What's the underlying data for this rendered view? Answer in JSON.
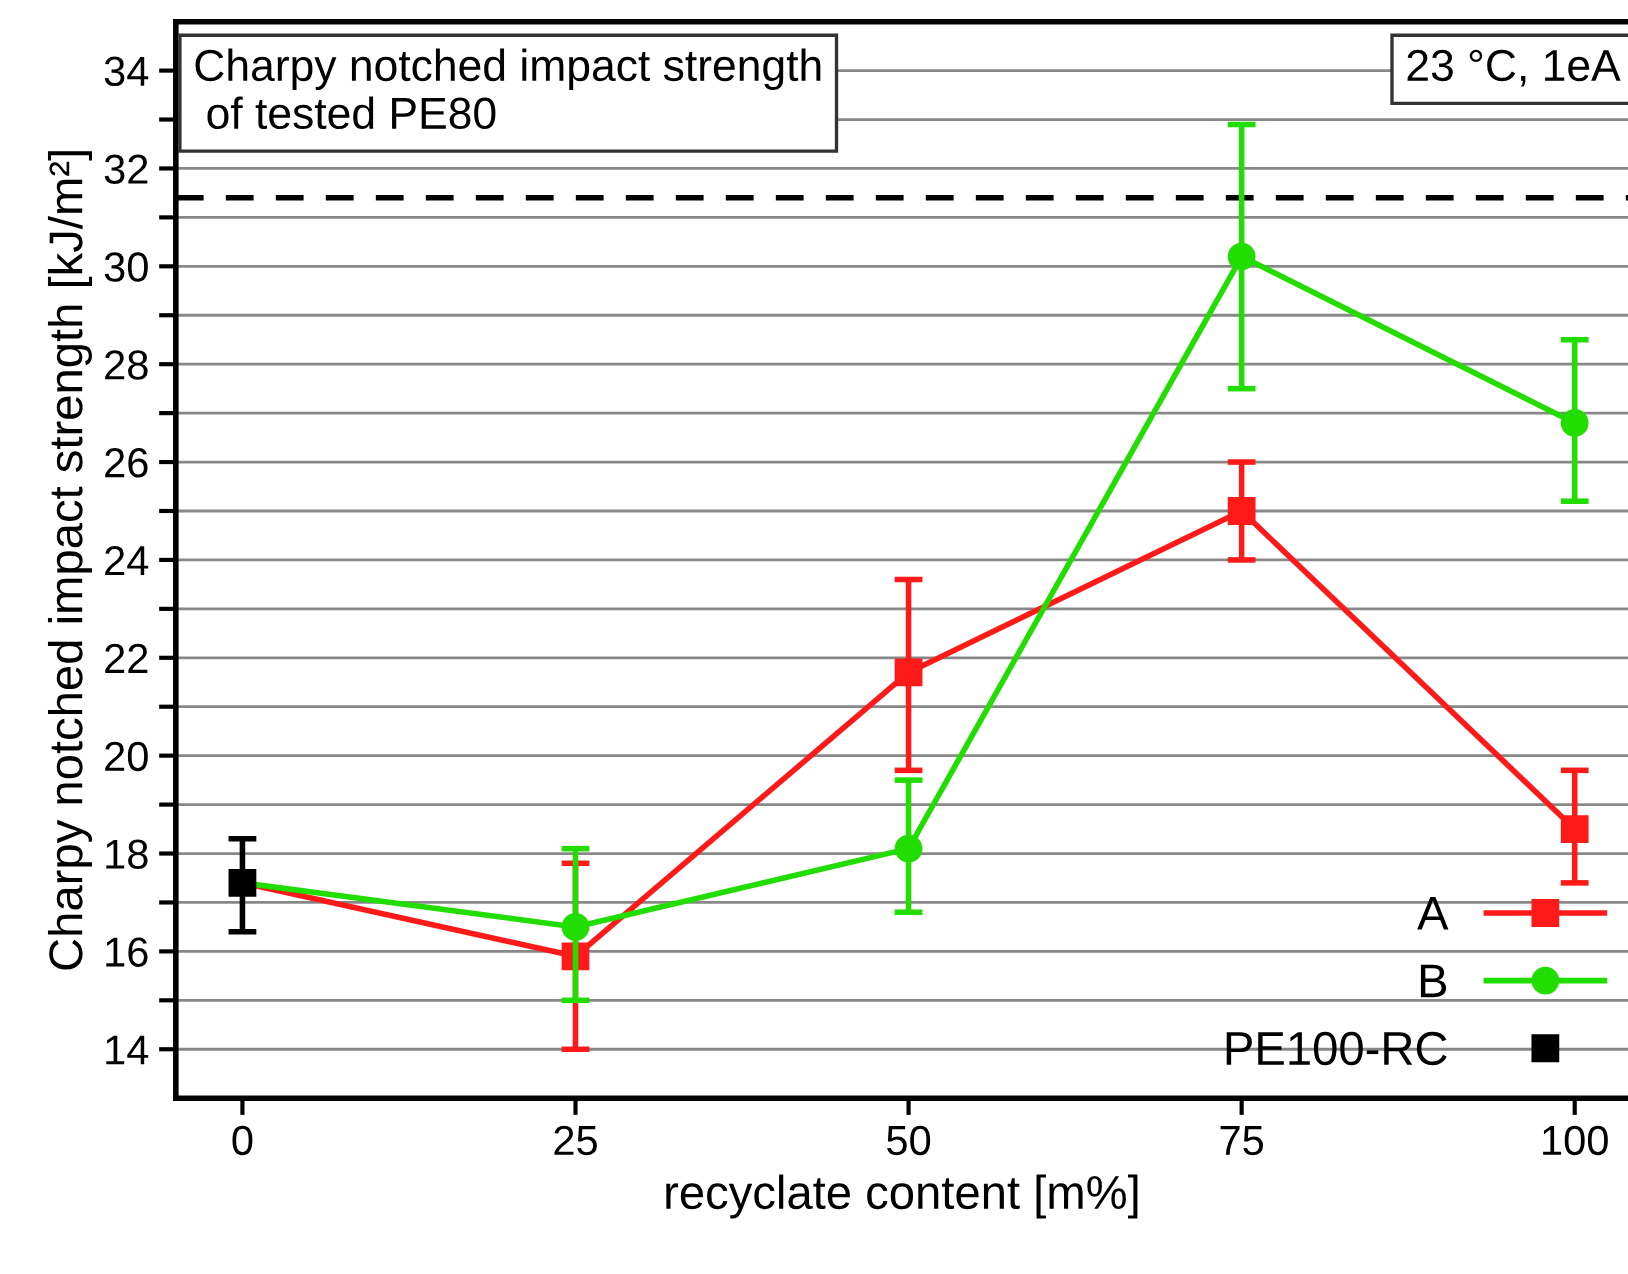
{
  "chart_data": {
    "type": "line",
    "xlabel": "recyclate content [m%]",
    "ylabel": "Charpy notched impact strength [kJ/m²]",
    "annotations": [
      "Charpy notched impact strength\n of tested PE80",
      "23 °C, 1eA"
    ],
    "x": [
      0,
      25,
      50,
      75,
      100
    ],
    "xlim": [
      -5,
      104
    ],
    "xticks": [
      0,
      25,
      50,
      75,
      100
    ],
    "ylim": [
      13,
      35
    ],
    "yticks": [
      14,
      {
        "value": 15,
        "label": null
      },
      16,
      {
        "value": 17,
        "label": null
      },
      18,
      {
        "value": 19,
        "label": null
      },
      20,
      {
        "value": 21,
        "label": null
      },
      22,
      {
        "value": 23,
        "label": null
      },
      24,
      {
        "value": 25,
        "label": null
      },
      26,
      {
        "value": 27,
        "label": null
      },
      28,
      {
        "value": 29,
        "label": null
      },
      30,
      {
        "value": 31,
        "label": null
      },
      32,
      {
        "value": 33,
        "label": null
      },
      34
    ],
    "grid": "y",
    "legend": "bottom right",
    "line_style": "solid",
    "ref_lines": [
      {
        "axis": "y",
        "value": 31.4,
        "color": "#000000",
        "line_style": "dashed"
      }
    ],
    "series": [
      {
        "name": "A",
        "color": "#ff1a1a",
        "marker": "square",
        "values": [
          17.4,
          15.9,
          21.7,
          25.0,
          18.5
        ],
        "errors": [
          null,
          [
            14.0,
            17.8
          ],
          [
            19.7,
            23.6
          ],
          [
            24.0,
            26.0
          ],
          [
            17.4,
            19.7
          ]
        ]
      },
      {
        "name": "B",
        "color": "#22dd00",
        "marker": "circle",
        "values": [
          17.4,
          16.5,
          18.1,
          30.2,
          26.8
        ],
        "errors": [
          null,
          [
            15.0,
            18.1
          ],
          [
            16.8,
            19.5
          ],
          [
            27.5,
            32.9
          ],
          [
            25.2,
            28.5
          ]
        ]
      },
      {
        "name": "PE100-RC",
        "color": "#000000",
        "marker": "square",
        "type": "scatter",
        "values": [
          17.4,
          null,
          null,
          null,
          null
        ],
        "errors": [
          [
            16.4,
            18.3
          ],
          null,
          null,
          null,
          null
        ]
      }
    ]
  }
}
